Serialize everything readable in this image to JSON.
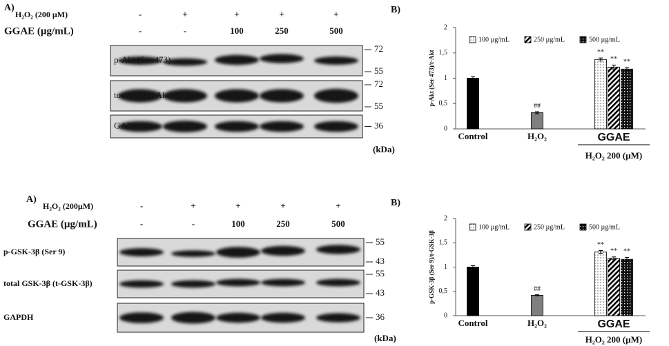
{
  "blots": [
    {
      "panel_label": "A)",
      "rows": [
        {
          "label": "H₂O₂ (200 µM)",
          "values": [
            "-",
            "+",
            "+",
            "+",
            "+"
          ]
        },
        {
          "label": "GGAE (µg/mL)",
          "values": [
            "-",
            "-",
            "100",
            "250",
            "500"
          ]
        }
      ],
      "bands": [
        {
          "label": "p-Akt (Ser 473)",
          "markers": [
            "72",
            "55"
          ]
        },
        {
          "label": "total Akt (t-Akt)",
          "markers": [
            "72",
            "55"
          ]
        },
        {
          "label": "GAPDH",
          "markers": [
            "36"
          ]
        }
      ],
      "unit": "(kDa)"
    },
    {
      "panel_label": "A)",
      "rows": [
        {
          "label": "H₂O₂ (200µM)",
          "values": [
            "-",
            "+",
            "+",
            "+",
            "+"
          ]
        },
        {
          "label": "GGAE (µg/mL)",
          "values": [
            "-",
            "-",
            "100",
            "250",
            "500"
          ]
        }
      ],
      "bands": [
        {
          "label": "p-GSK-3β (Ser 9)",
          "markers": [
            "55",
            "43"
          ]
        },
        {
          "label": "total GSK-3β (t-GSK-3β)",
          "markers": [
            "55",
            "43"
          ]
        },
        {
          "label": "GAPDH",
          "markers": [
            "36"
          ]
        }
      ],
      "unit": "(kDa)"
    }
  ],
  "chart_data": [
    {
      "type": "bar",
      "panel_label": "B)",
      "y_label": "p-Akt (Ser 473)/t-Akt",
      "categories": [
        "Control",
        "H₂O₂",
        null,
        null,
        null
      ],
      "values": [
        1.0,
        0.32,
        1.37,
        1.22,
        1.18
      ],
      "errors": [
        0.03,
        0.02,
        0.03,
        0.04,
        0.03
      ],
      "bar_styles": [
        "black",
        "gray",
        "dots",
        "hatch",
        "check"
      ],
      "markers": [
        null,
        "##",
        "**",
        "**",
        "**"
      ],
      "legend": [
        {
          "label": "100 µg/mL",
          "style": "dots"
        },
        {
          "label": "250 µg/mL",
          "style": "hatch"
        },
        {
          "label": "500 µg/mL",
          "style": "check"
        }
      ],
      "group_label": "GGAE",
      "treatment_label": "H₂O₂ 200 (µM)",
      "ylim": [
        0,
        2
      ],
      "yticks": [
        0,
        {
          "value": 0.5,
          "label": "0,5"
        },
        1,
        {
          "value": 1.5,
          "label": "1,5"
        },
        2
      ]
    },
    {
      "type": "bar",
      "panel_label": "B)",
      "y_label": "p-GSK-3β (Ser 9)/t-GSK-3β",
      "categories": [
        "Control",
        "H₂O₂",
        null,
        null,
        null
      ],
      "values": [
        1.0,
        0.42,
        1.31,
        1.18,
        1.16
      ],
      "errors": [
        0.03,
        0.01,
        0.03,
        0.03,
        0.04
      ],
      "bar_styles": [
        "black",
        "gray",
        "dots",
        "hatch",
        "check"
      ],
      "markers": [
        null,
        "##",
        "**",
        "**",
        "**"
      ],
      "legend": [
        {
          "label": "100 µg/mL",
          "style": "dots"
        },
        {
          "label": "250 µg/mL",
          "style": "hatch"
        },
        {
          "label": "500 µg/mL",
          "style": "check"
        }
      ],
      "group_label": "GGAE",
      "treatment_label": "H₂O₂ 200 (µM)",
      "ylim": [
        0,
        2
      ],
      "yticks": [
        0,
        {
          "value": 0.5,
          "label": "0,5"
        },
        1,
        {
          "value": 1.5,
          "label": "1,5"
        },
        2
      ]
    }
  ]
}
